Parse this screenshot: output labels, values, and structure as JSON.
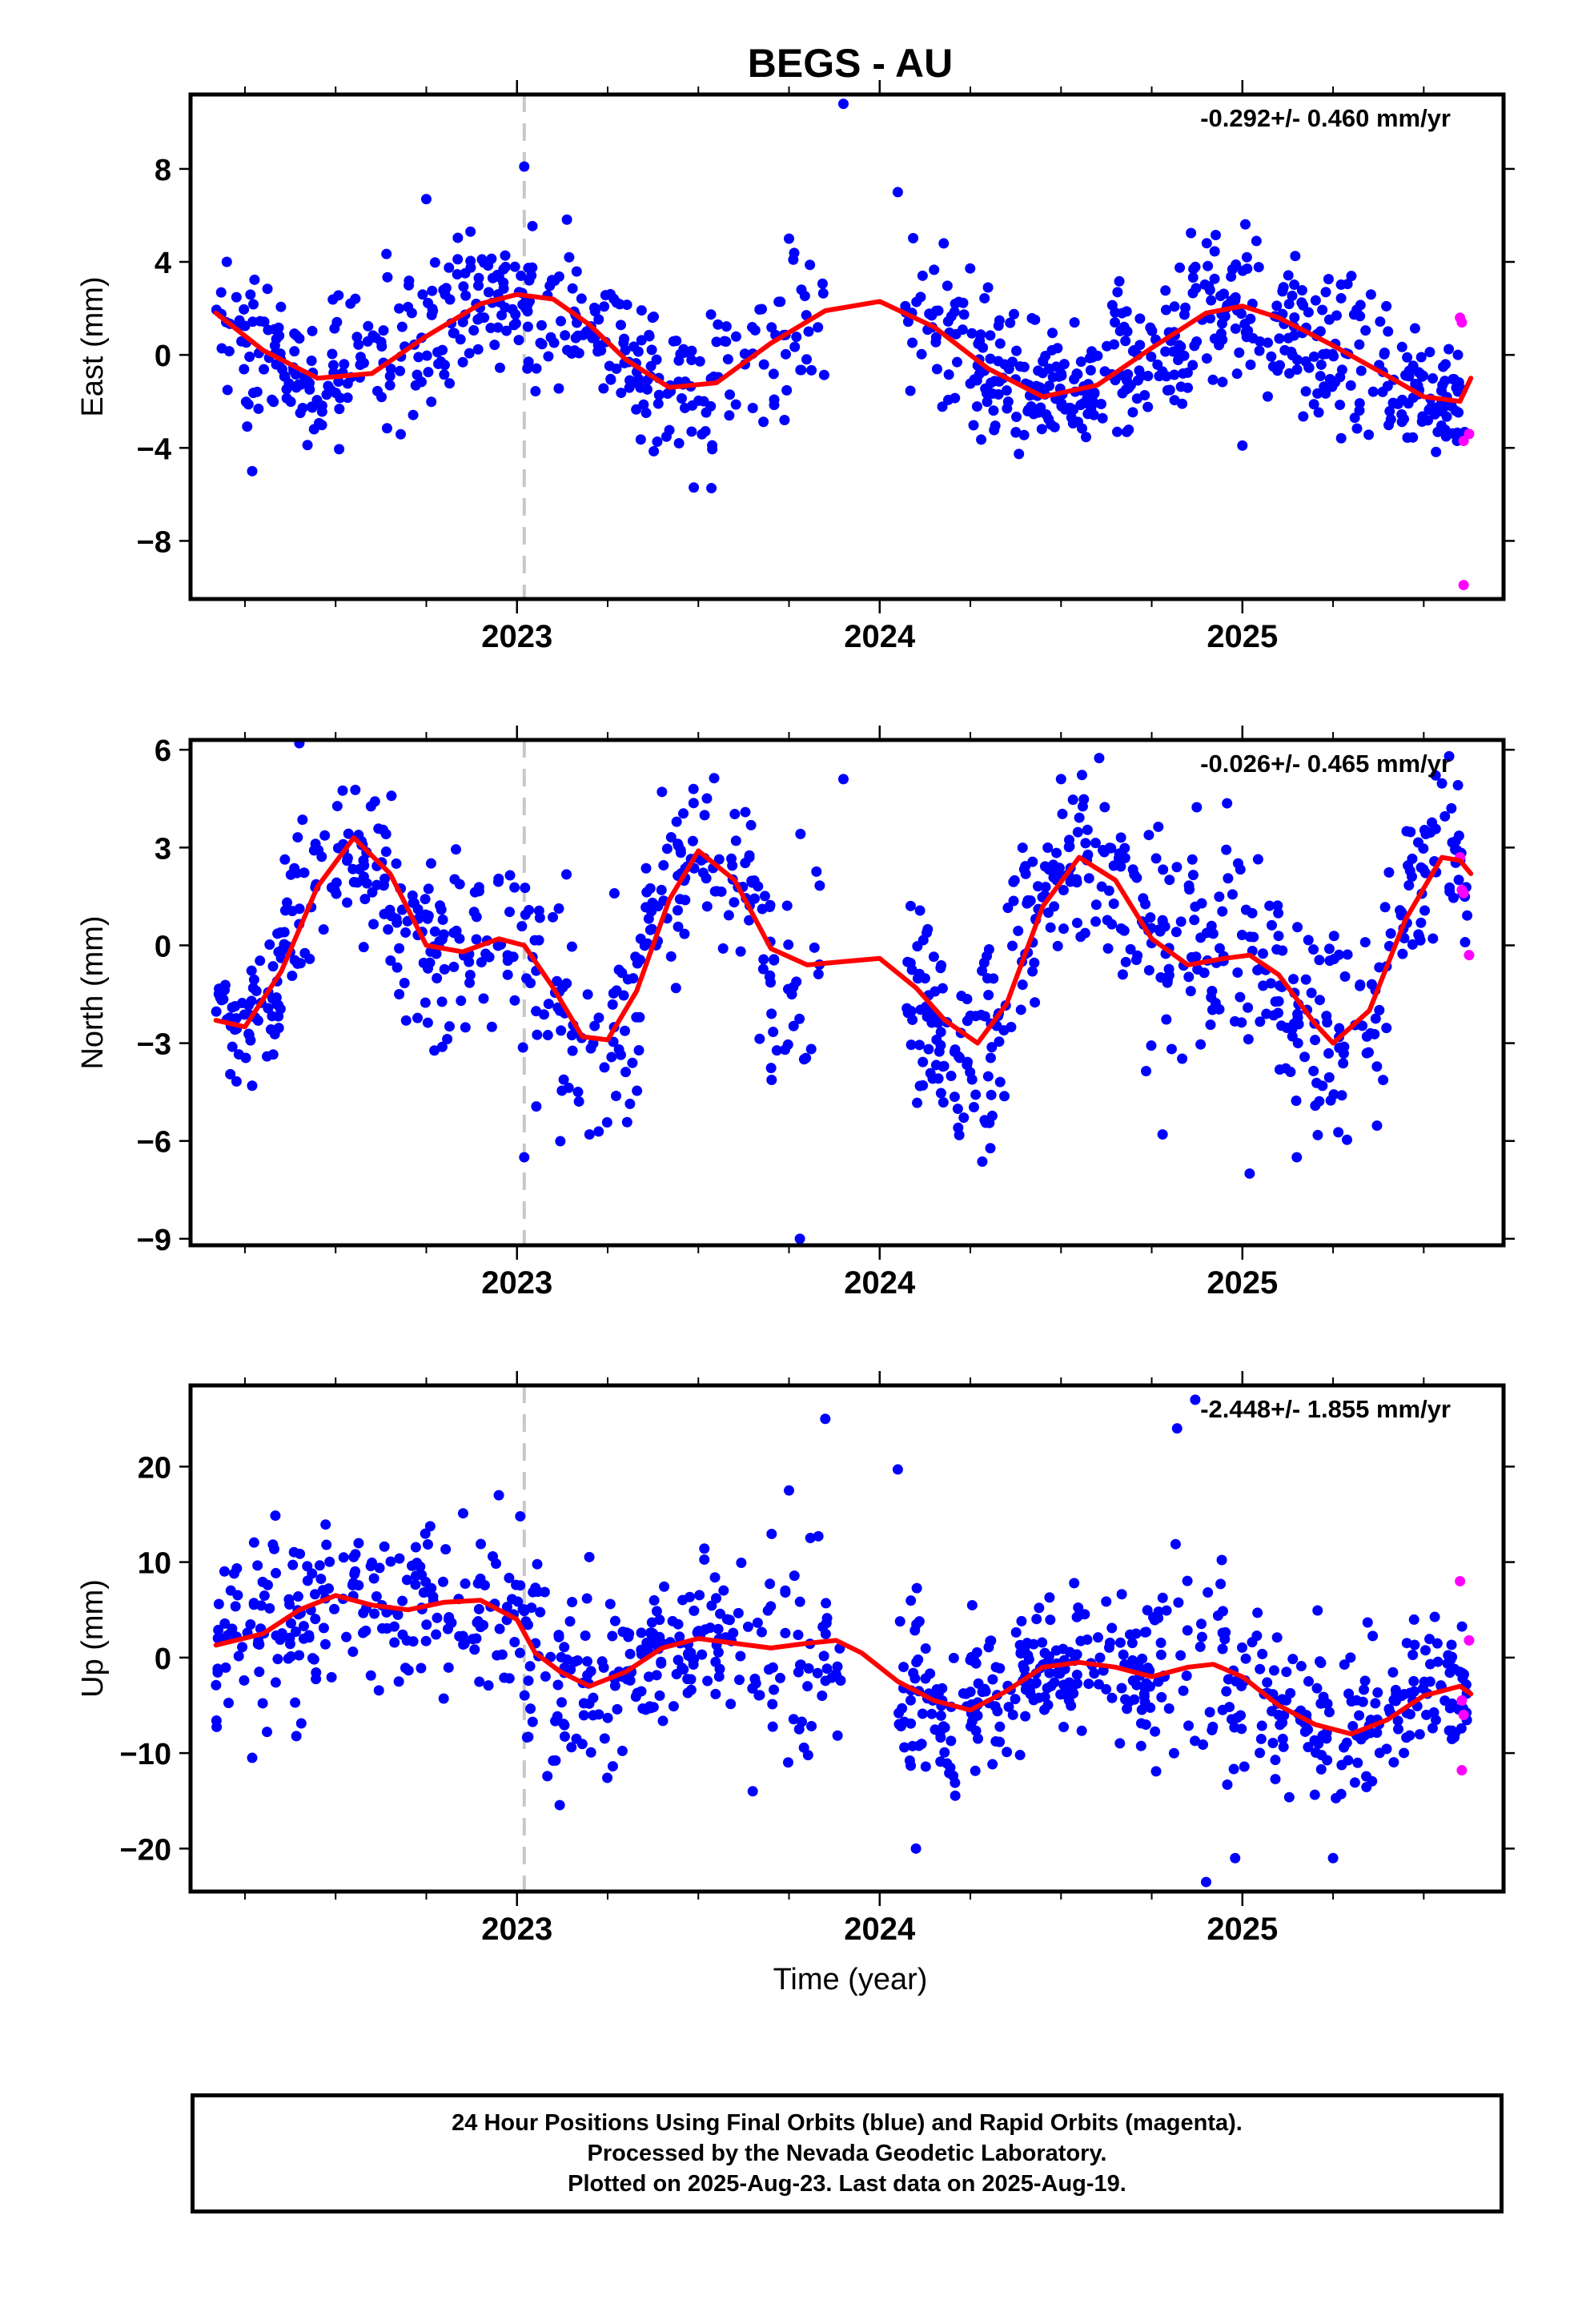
{
  "title": "BEGS - AU",
  "xlabel": "Time (year)",
  "colors": {
    "final": "#0000ff",
    "rapid": "#ff00ff",
    "model": "#ff0000",
    "equipment_change": "#c8c8c8"
  },
  "caption": [
    "24 Hour Positions Using Final Orbits (blue) and Rapid Orbits (magenta).",
    "Processed by the Nevada Geodetic Laboratory.",
    "Plotted on 2025-Aug-23. Last data on 2025-Aug-19."
  ],
  "chart_data": [
    {
      "type": "scatter",
      "ylabel": "East (mm)",
      "rate": "-0.292+/- 0.460 mm/yr",
      "xlim": [
        2022.1,
        2025.72
      ],
      "ylim": [
        -10.5,
        11.2
      ],
      "yticks": [
        8,
        4,
        0,
        -4,
        -8
      ],
      "ytick_labels": [
        "8",
        "4",
        "0",
        "−4",
        "−8"
      ],
      "xticks": [
        2023,
        2024,
        2025
      ],
      "xtick_labels": [
        "2023",
        "2024",
        "2025"
      ],
      "equipment_change": 2023.02,
      "model": {
        "x": [
          2022.17,
          2022.3,
          2022.45,
          2022.6,
          2022.75,
          2022.9,
          2023.0,
          2023.1,
          2023.2,
          2023.3,
          2023.42,
          2023.55,
          2023.7,
          2023.85,
          2024.0,
          2024.15,
          2024.3,
          2024.45,
          2024.6,
          2024.75,
          2024.9,
          2025.0,
          2025.1,
          2025.25,
          2025.4,
          2025.5,
          2025.6,
          2025.63
        ],
        "y": [
          1.8,
          0.2,
          -1.0,
          -0.8,
          0.8,
          2.2,
          2.6,
          2.4,
          1.3,
          -0.2,
          -1.4,
          -1.2,
          0.5,
          1.9,
          2.3,
          1.2,
          -0.6,
          -1.8,
          -1.3,
          0.3,
          1.8,
          2.1,
          1.6,
          0.4,
          -0.9,
          -1.8,
          -2.0,
          -1.0
        ]
      },
      "final": {
        "cloud": [
          {
            "x0": 2022.17,
            "x1": 2022.5,
            "yc": -0.7,
            "spread": 1.4,
            "n": 90
          },
          {
            "x0": 2022.5,
            "x1": 2022.8,
            "yc": 0.8,
            "spread": 1.8,
            "n": 70
          },
          {
            "x0": 2022.8,
            "x1": 2023.05,
            "yc": 2.8,
            "spread": 1.4,
            "n": 80
          },
          {
            "x0": 2023.05,
            "x1": 2023.3,
            "yc": 0.9,
            "spread": 1.6,
            "n": 60
          },
          {
            "x0": 2023.3,
            "x1": 2023.55,
            "yc": -1.6,
            "spread": 1.7,
            "n": 70
          },
          {
            "x0": 2023.55,
            "x1": 2023.85,
            "yc": 0.9,
            "spread": 1.7,
            "n": 50
          },
          {
            "x0": 2024.07,
            "x1": 2024.3,
            "yc": 0.6,
            "spread": 1.8,
            "n": 60
          },
          {
            "x0": 2024.3,
            "x1": 2024.6,
            "yc": -1.9,
            "spread": 1.3,
            "n": 110
          },
          {
            "x0": 2024.6,
            "x1": 2024.85,
            "yc": 0.0,
            "spread": 1.6,
            "n": 80
          },
          {
            "x0": 2024.85,
            "x1": 2025.15,
            "yc": 1.7,
            "spread": 1.5,
            "n": 90
          },
          {
            "x0": 2025.15,
            "x1": 2025.4,
            "yc": 0.2,
            "spread": 1.6,
            "n": 70
          },
          {
            "x0": 2025.4,
            "x1": 2025.62,
            "yc": -1.6,
            "spread": 1.2,
            "n": 80
          }
        ],
        "outliers": [
          [
            2023.02,
            8.1
          ],
          [
            2023.9,
            10.8
          ],
          [
            2024.05,
            7.0
          ],
          [
            2022.27,
            -5.0
          ],
          [
            2022.2,
            4.0
          ],
          [
            2025.0,
            -3.9
          ],
          [
            2023.75,
            5.0
          ],
          [
            2022.75,
            6.7
          ]
        ]
      },
      "rapid": [
        [
          2025.6,
          1.6
        ],
        [
          2025.605,
          1.4
        ],
        [
          2025.61,
          -3.7
        ],
        [
          2025.625,
          -3.4
        ],
        [
          2025.61,
          -9.9
        ]
      ]
    },
    {
      "type": "scatter",
      "ylabel": "North (mm)",
      "rate": "-0.026+/- 0.465 mm/yr",
      "xlim": [
        2022.1,
        2025.72
      ],
      "ylim": [
        -9.2,
        6.3
      ],
      "yticks": [
        6,
        3,
        0,
        -3,
        -6,
        -9
      ],
      "ytick_labels": [
        "6",
        "3",
        "0",
        "−3",
        "−6",
        "−9"
      ],
      "xticks": [
        2023,
        2024,
        2025
      ],
      "xtick_labels": [
        "2023",
        "2024",
        "2025"
      ],
      "equipment_change": 2023.02,
      "model": {
        "x": [
          2022.17,
          2022.25,
          2022.35,
          2022.45,
          2022.55,
          2022.65,
          2022.75,
          2022.85,
          2022.95,
          2023.02,
          2023.1,
          2023.18,
          2023.25,
          2023.33,
          2023.42,
          2023.5,
          2023.6,
          2023.7,
          2023.8,
          2023.9,
          2024.0,
          2024.1,
          2024.18,
          2024.27,
          2024.35,
          2024.45,
          2024.55,
          2024.65,
          2024.75,
          2024.85,
          2024.95,
          2025.02,
          2025.1,
          2025.2,
          2025.25,
          2025.35,
          2025.45,
          2025.55,
          2025.6,
          2025.63
        ],
        "y": [
          -2.3,
          -2.5,
          -0.8,
          1.8,
          3.3,
          2.2,
          0.0,
          -0.2,
          0.2,
          0.0,
          -1.3,
          -2.8,
          -2.9,
          -1.4,
          1.4,
          2.9,
          2.0,
          -0.1,
          -0.6,
          -0.5,
          -0.4,
          -1.3,
          -2.3,
          -3.0,
          -1.8,
          1.2,
          2.7,
          2.0,
          0.2,
          -0.6,
          -0.4,
          -0.3,
          -0.9,
          -2.4,
          -3.0,
          -2.0,
          0.8,
          2.7,
          2.6,
          2.2
        ]
      },
      "final": {
        "cloud": [
          {
            "x0": 2022.17,
            "x1": 2022.35,
            "yc": -1.9,
            "spread": 1.1,
            "n": 60
          },
          {
            "x0": 2022.35,
            "x1": 2022.65,
            "yc": 2.2,
            "spread": 1.3,
            "n": 80
          },
          {
            "x0": 2022.65,
            "x1": 2023.05,
            "yc": -0.3,
            "spread": 1.5,
            "n": 100
          },
          {
            "x0": 2023.05,
            "x1": 2023.35,
            "yc": -2.6,
            "spread": 1.5,
            "n": 70
          },
          {
            "x0": 2023.35,
            "x1": 2023.65,
            "yc": 2.3,
            "spread": 1.3,
            "n": 80
          },
          {
            "x0": 2023.65,
            "x1": 2023.85,
            "yc": -0.4,
            "spread": 1.6,
            "n": 40
          },
          {
            "x0": 2024.07,
            "x1": 2024.35,
            "yc": -2.9,
            "spread": 1.6,
            "n": 100
          },
          {
            "x0": 2024.35,
            "x1": 2024.65,
            "yc": 1.6,
            "spread": 1.5,
            "n": 90
          },
          {
            "x0": 2024.65,
            "x1": 2025.1,
            "yc": 0.1,
            "spread": 1.6,
            "n": 120
          },
          {
            "x0": 2025.1,
            "x1": 2025.4,
            "yc": -2.4,
            "spread": 1.5,
            "n": 80
          },
          {
            "x0": 2025.4,
            "x1": 2025.62,
            "yc": 2.5,
            "spread": 1.4,
            "n": 60
          }
        ],
        "outliers": [
          [
            2022.4,
            6.2
          ],
          [
            2023.02,
            -6.5
          ],
          [
            2023.78,
            -9.0
          ],
          [
            2023.9,
            5.1
          ],
          [
            2024.5,
            5.1
          ],
          [
            2025.02,
            -7.0
          ],
          [
            2025.57,
            5.8
          ],
          [
            2024.78,
            -5.8
          ],
          [
            2025.15,
            -6.5
          ],
          [
            2023.2,
            -5.8
          ]
        ]
      },
      "rapid": [
        [
          2025.6,
          2.7
        ],
        [
          2025.605,
          1.7
        ],
        [
          2025.61,
          1.6
        ],
        [
          2025.625,
          -0.3
        ]
      ]
    },
    {
      "type": "scatter",
      "ylabel": "Up (mm)",
      "rate": "-2.448+/- 1.855 mm/yr",
      "xlim": [
        2022.1,
        2025.72
      ],
      "ylim": [
        -24.5,
        28.5
      ],
      "yticks": [
        20,
        10,
        0,
        -10,
        -20
      ],
      "ytick_labels": [
        "20",
        "10",
        "0",
        "−10",
        "−20"
      ],
      "xticks": [
        2023,
        2024,
        2025
      ],
      "xtick_labels": [
        "2023",
        "2024",
        "2025"
      ],
      "equipment_change": 2023.02,
      "model": {
        "x": [
          2022.17,
          2022.3,
          2022.4,
          2022.5,
          2022.6,
          2022.7,
          2022.8,
          2022.9,
          2023.0,
          2023.05,
          2023.12,
          2023.2,
          2023.3,
          2023.4,
          2023.5,
          2023.6,
          2023.7,
          2023.8,
          2023.88,
          2023.95,
          2024.05,
          2024.15,
          2024.25,
          2024.35,
          2024.45,
          2024.55,
          2024.65,
          2024.75,
          2024.85,
          2024.92,
          2025.0,
          2025.1,
          2025.2,
          2025.3,
          2025.4,
          2025.5,
          2025.6,
          2025.63
        ],
        "y": [
          1.3,
          2.5,
          5.0,
          6.5,
          5.5,
          5.0,
          5.8,
          6.0,
          4.0,
          0.5,
          -1.5,
          -3.0,
          -1.5,
          1.0,
          2.0,
          1.5,
          1.0,
          1.5,
          1.8,
          0.5,
          -2.5,
          -4.5,
          -5.5,
          -3.5,
          -1.0,
          -0.5,
          -1.0,
          -2.0,
          -1.0,
          -0.7,
          -2.0,
          -5.0,
          -7.0,
          -8.0,
          -6.5,
          -4.0,
          -3.0,
          -3.8
        ]
      },
      "final": {
        "cloud": [
          {
            "x0": 2022.17,
            "x1": 2022.5,
            "yc": 4.0,
            "spread": 5.0,
            "n": 100
          },
          {
            "x0": 2022.5,
            "x1": 2023.02,
            "yc": 6.0,
            "spread": 4.5,
            "n": 120
          },
          {
            "x0": 2023.02,
            "x1": 2023.3,
            "yc": -3.5,
            "spread": 5.0,
            "n": 80
          },
          {
            "x0": 2023.3,
            "x1": 2023.6,
            "yc": 0.5,
            "spread": 3.5,
            "n": 100
          },
          {
            "x0": 2023.6,
            "x1": 2023.9,
            "yc": 1.0,
            "spread": 5.5,
            "n": 60
          },
          {
            "x0": 2024.05,
            "x1": 2024.35,
            "yc": -4.5,
            "spread": 5.0,
            "n": 100
          },
          {
            "x0": 2024.35,
            "x1": 2024.75,
            "yc": -1.5,
            "spread": 3.5,
            "n": 140
          },
          {
            "x0": 2024.75,
            "x1": 2025.1,
            "yc": -2.5,
            "spread": 5.5,
            "n": 80
          },
          {
            "x0": 2025.1,
            "x1": 2025.4,
            "yc": -7.0,
            "spread": 4.0,
            "n": 80
          },
          {
            "x0": 2025.4,
            "x1": 2025.62,
            "yc": -2.5,
            "spread": 3.5,
            "n": 70
          }
        ],
        "outliers": [
          [
            2023.85,
            25.0
          ],
          [
            2024.05,
            19.7
          ],
          [
            2024.82,
            24.0
          ],
          [
            2024.87,
            27.0
          ],
          [
            2022.27,
            -10.5
          ],
          [
            2023.65,
            -14.0
          ],
          [
            2024.1,
            -20.0
          ],
          [
            2024.98,
            -21.0
          ],
          [
            2024.9,
            -23.5
          ],
          [
            2025.25,
            -21.0
          ],
          [
            2022.95,
            17.0
          ],
          [
            2023.75,
            17.5
          ]
        ]
      },
      "rapid": [
        [
          2025.6,
          8.0
        ],
        [
          2025.605,
          -4.5
        ],
        [
          2025.61,
          -6.0
        ],
        [
          2025.605,
          -11.8
        ],
        [
          2025.625,
          1.8
        ]
      ]
    }
  ]
}
